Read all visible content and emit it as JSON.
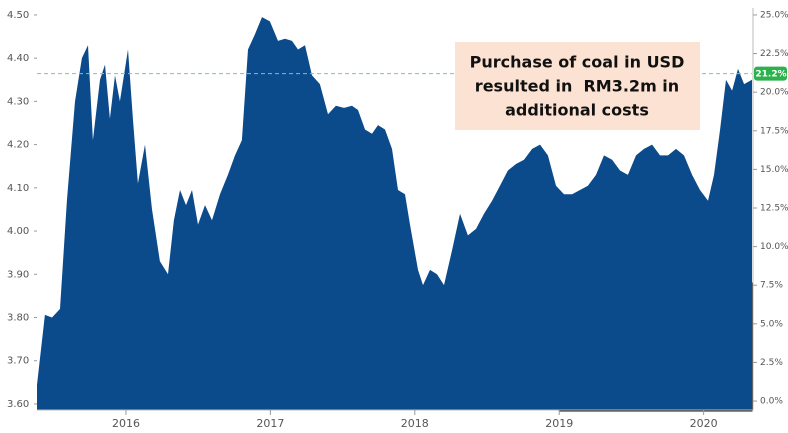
{
  "chart_data": {
    "type": "area",
    "color": "#0b4a8b",
    "grid": false,
    "x": [
      2015.384,
      2015.439,
      2015.488,
      2015.543,
      2015.591,
      2015.647,
      2015.695,
      2015.737,
      2015.771,
      2015.82,
      2015.855,
      2015.889,
      2015.924,
      2015.958,
      2016.014,
      2016.048,
      2016.083,
      2016.132,
      2016.18,
      2016.235,
      2016.291,
      2016.332,
      2016.374,
      2016.416,
      2016.457,
      2016.499,
      2016.547,
      2016.596,
      2016.651,
      2016.706,
      2016.755,
      2016.803,
      2016.845,
      2016.893,
      2016.942,
      2016.997,
      2017.053,
      2017.101,
      2017.15,
      2017.191,
      2017.24,
      2017.288,
      2017.343,
      2017.399,
      2017.454,
      2017.51,
      2017.565,
      2017.607,
      2017.655,
      2017.704,
      2017.745,
      2017.794,
      2017.842,
      2017.884,
      2017.932,
      2017.967,
      2018.022,
      2018.057,
      2018.105,
      2018.154,
      2018.202,
      2018.258,
      2018.313,
      2018.368,
      2018.424,
      2018.479,
      2018.535,
      2018.59,
      2018.645,
      2018.701,
      2018.756,
      2018.812,
      2018.867,
      2018.922,
      2018.978,
      2019.033,
      2019.089,
      2019.144,
      2019.199,
      2019.255,
      2019.31,
      2019.366,
      2019.421,
      2019.476,
      2019.532,
      2019.587,
      2019.643,
      2019.698,
      2019.753,
      2019.809,
      2019.864,
      2019.92,
      2019.975,
      2020.03,
      2020.072,
      2020.114,
      2020.155,
      2020.197,
      2020.238,
      2020.28,
      2020.335
    ],
    "values": [
      3.644,
      3.806,
      3.8,
      3.82,
      4.07,
      4.3,
      4.4,
      4.43,
      4.21,
      4.35,
      4.385,
      4.26,
      4.36,
      4.3,
      4.42,
      4.26,
      4.11,
      4.2,
      4.05,
      3.93,
      3.9,
      4.025,
      4.095,
      4.06,
      4.095,
      4.015,
      4.06,
      4.025,
      4.085,
      4.13,
      4.175,
      4.21,
      4.42,
      4.455,
      4.495,
      4.485,
      4.44,
      4.445,
      4.44,
      4.42,
      4.43,
      4.36,
      4.34,
      4.27,
      4.29,
      4.285,
      4.29,
      4.28,
      4.235,
      4.225,
      4.245,
      4.235,
      4.19,
      4.095,
      4.085,
      4.015,
      3.91,
      3.875,
      3.91,
      3.9,
      3.875,
      3.955,
      4.04,
      3.99,
      4.005,
      4.04,
      4.07,
      4.105,
      4.14,
      4.155,
      4.165,
      4.19,
      4.2,
      4.175,
      4.105,
      4.085,
      4.085,
      4.095,
      4.105,
      4.13,
      4.175,
      4.165,
      4.14,
      4.13,
      4.175,
      4.19,
      4.2,
      4.175,
      4.175,
      4.19,
      4.175,
      4.13,
      4.095,
      4.07,
      4.13,
      4.235,
      4.35,
      4.325,
      4.375,
      4.34,
      4.35
    ],
    "xlim": [
      2015.384,
      2020.335
    ],
    "xticks": [
      2016,
      2017,
      2018,
      2019,
      2020
    ],
    "ylim": [
      3.586,
      4.516
    ],
    "yticks": [
      {
        "value": 3.6,
        "label": "3.60"
      },
      {
        "value": 3.7,
        "label": "3.70"
      },
      {
        "value": 3.8,
        "label": "3.80"
      },
      {
        "value": 3.9,
        "label": "3.90"
      },
      {
        "value": 4.0,
        "label": "4.00"
      },
      {
        "value": 4.1,
        "label": "4.10"
      },
      {
        "value": 4.2,
        "label": "4.20"
      },
      {
        "value": 4.3,
        "label": "4.30"
      },
      {
        "value": 4.4,
        "label": "4.40"
      },
      {
        "value": 4.5,
        "label": "4.50"
      }
    ],
    "y2lim": [
      -0.58,
      25.45
    ],
    "y2ticks": [
      {
        "value": 0,
        "label": "0.0%"
      },
      {
        "value": 2.5,
        "label": "2.5%"
      },
      {
        "value": 5,
        "label": "5.0%"
      },
      {
        "value": 7.5,
        "label": "7.5%"
      },
      {
        "value": 10,
        "label": "10.0%"
      },
      {
        "value": 12.5,
        "label": "12.5%"
      },
      {
        "value": 15,
        "label": "15.0%"
      },
      {
        "value": 17.5,
        "label": "17.5%"
      },
      {
        "value": 20,
        "label": "20.0%"
      },
      {
        "value": 22.5,
        "label": "22.5%"
      },
      {
        "value": 25,
        "label": "25.0%"
      }
    ],
    "reference_line": {
      "y2": 21.2,
      "label": "21.2%"
    },
    "annotation": [
      "Purchase of coal in USD",
      "resulted in  RM3.2m in",
      "additional costs"
    ]
  }
}
